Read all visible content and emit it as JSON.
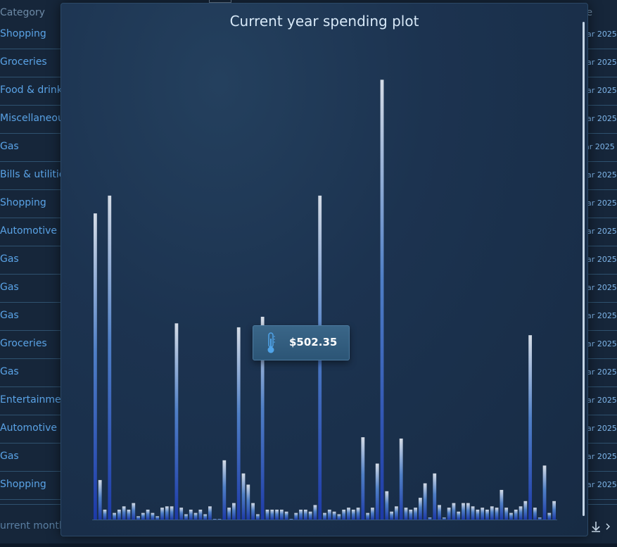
{
  "table": {
    "category_header": "Category",
    "date_header": "te",
    "rows": [
      {
        "category": "Shopping",
        "date": "lar 2025"
      },
      {
        "category": "Groceries",
        "date": "lar 2025"
      },
      {
        "category": "Food & drink",
        "date": "lar 2025"
      },
      {
        "category": "Miscellaneou",
        "date": "lar 2025"
      },
      {
        "category": "Gas",
        "date": "ar 2025"
      },
      {
        "category": "Bills & utilitie",
        "date": "lar 2025"
      },
      {
        "category": "Shopping",
        "date": "lar 2025"
      },
      {
        "category": "Automotive",
        "date": "lar 2025"
      },
      {
        "category": "Gas",
        "date": "lar 2025"
      },
      {
        "category": "Gas",
        "date": "lar 2025"
      },
      {
        "category": "Gas",
        "date": "lar 2025"
      },
      {
        "category": "Groceries",
        "date": "lar 2025"
      },
      {
        "category": "Gas",
        "date": "lar 2025"
      },
      {
        "category": "Entertainmen",
        "date": "lar 2025"
      },
      {
        "category": "Automotive",
        "date": "lar 2025"
      },
      {
        "category": "Gas",
        "date": "lar 2025"
      },
      {
        "category": "Shopping",
        "date": "lar 2025"
      }
    ],
    "footer_label": "urrent month"
  },
  "popup": {
    "title": "Current year spending plot",
    "tooltip_value": "$502.35"
  },
  "icons": {
    "tooltip": "thermometer-icon",
    "download": "download-icon",
    "next": "chevron-right-icon"
  },
  "colors": {
    "bar_top": "#d5dce6",
    "bar_bottom": "#1d3aa8",
    "accent": "#5aa3e6"
  },
  "chart_data": {
    "type": "bar",
    "values": [
      465,
      60,
      15,
      492,
      10,
      15,
      20,
      15,
      25,
      5,
      10,
      15,
      10,
      5,
      18,
      20,
      20,
      298,
      18,
      8,
      15,
      10,
      15,
      8,
      20,
      0,
      0,
      90,
      18,
      25,
      292,
      70,
      53,
      25,
      8,
      308,
      15,
      15,
      15,
      15,
      12,
      0,
      10,
      15,
      15,
      12,
      22,
      492,
      10,
      15,
      12,
      8,
      15,
      18,
      15,
      18,
      125,
      10,
      18,
      85,
      668,
      43,
      12,
      20,
      123,
      18,
      15,
      18,
      33,
      55,
      3,
      70,
      22,
      3,
      18,
      25,
      12,
      25,
      25,
      20,
      15,
      18,
      15,
      20,
      18,
      45,
      18,
      10,
      15,
      20,
      28,
      280,
      18,
      3,
      82,
      10,
      28
    ],
    "highlighted_value": 502.35,
    "ylim": [
      0,
      700
    ],
    "grid": false,
    "legend": "none"
  }
}
